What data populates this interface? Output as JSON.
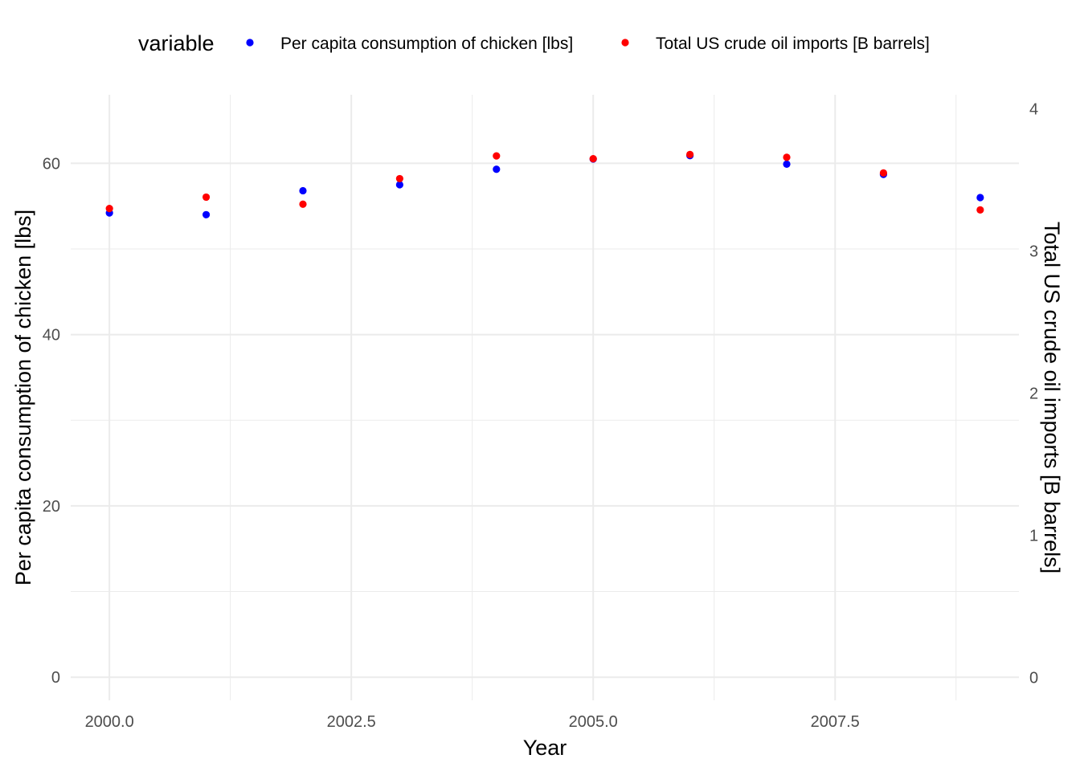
{
  "chart_data": {
    "type": "scatter",
    "x": [
      2000,
      2001,
      2002,
      2003,
      2004,
      2005,
      2006,
      2007,
      2008,
      2009
    ],
    "xlabel": "Year",
    "ylabel": "Per capita consumption of chicken [lbs]",
    "ylabel_right": "Total US crude oil imports [B barrels]",
    "xlim": [
      1999.6,
      2009.4
    ],
    "ylim": [
      -2.7,
      68
    ],
    "ylim_right": [
      -0.16,
      4.1
    ],
    "x_ticks": [
      2000,
      2002.5,
      2005,
      2007.5
    ],
    "x_tick_labels": [
      "2000.0",
      "2002.5",
      "2005.0",
      "2007.5"
    ],
    "y_ticks": [
      0,
      20,
      40,
      60
    ],
    "y_tick_labels": [
      "0",
      "20",
      "40",
      "60"
    ],
    "y_ticks_right": [
      0,
      1,
      2,
      3,
      4
    ],
    "y_tick_labels_right": [
      "0",
      "1",
      "2",
      "3",
      "4"
    ],
    "grid": true,
    "legend": {
      "title": "variable",
      "position": "top"
    },
    "series": [
      {
        "name": "Per capita consumption of chicken [lbs]",
        "color": "#0000ff",
        "axis": "left",
        "values": [
          54.2,
          54.0,
          56.8,
          57.5,
          59.3,
          60.5,
          60.9,
          59.9,
          58.7,
          56.0
        ]
      },
      {
        "name": "Total US crude oil imports [B barrels]",
        "color": "#ff0000",
        "axis": "right",
        "values": [
          3.3,
          3.38,
          3.33,
          3.51,
          3.67,
          3.65,
          3.68,
          3.66,
          3.55,
          3.29
        ]
      }
    ]
  }
}
